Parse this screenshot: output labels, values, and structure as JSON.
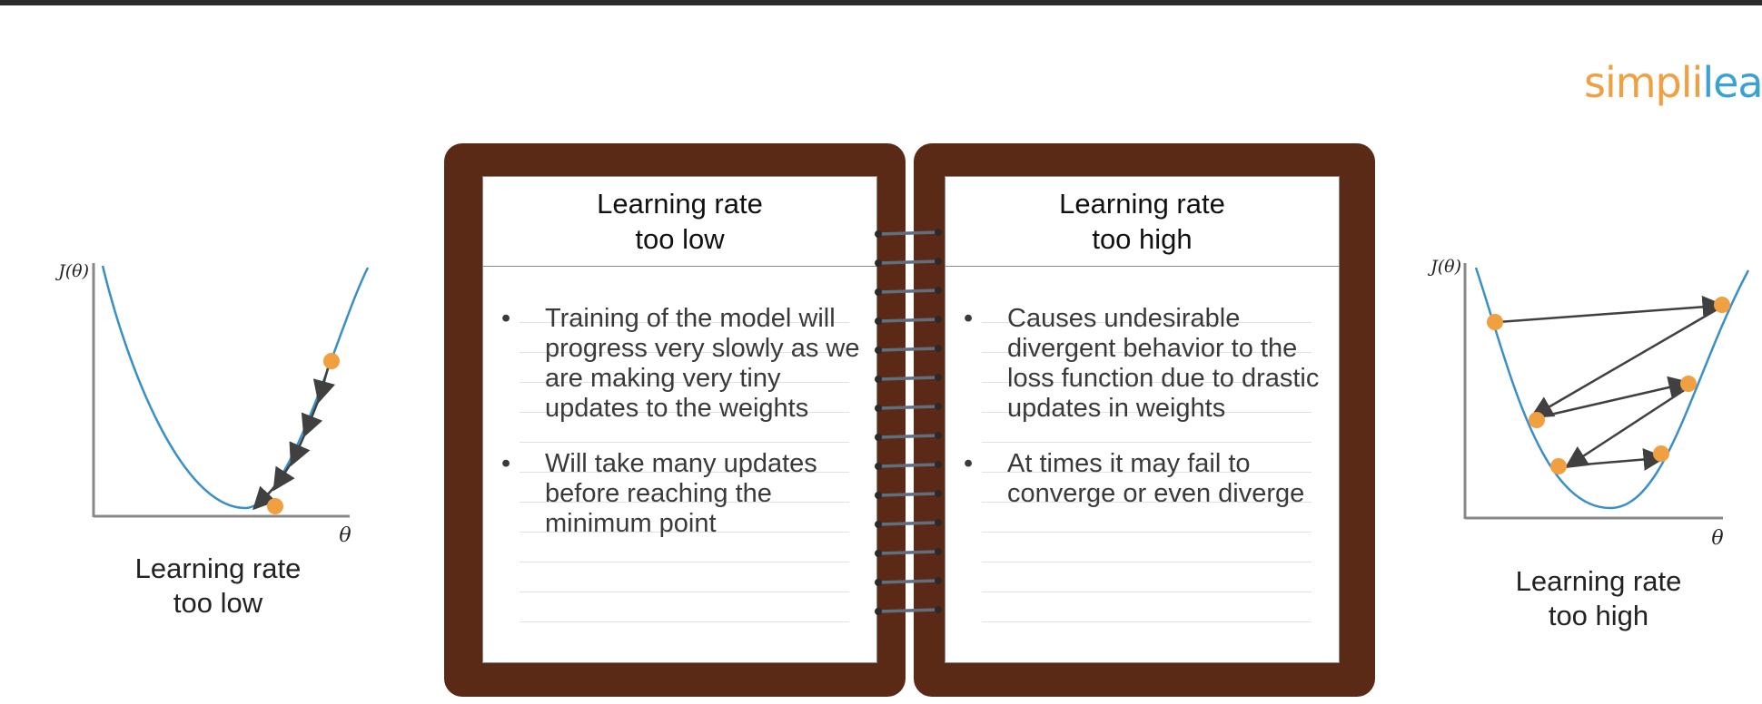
{
  "logo": {
    "part1": "simpl",
    "separator": "i",
    "part2": "learn"
  },
  "colors": {
    "cover": "#5a2a17",
    "curve": "#3a8fc7",
    "dot": "#f0a040",
    "arrow": "#404040",
    "axis": "#888888"
  },
  "left_graph": {
    "y_label": "J(θ)",
    "x_label": "θ",
    "caption_line1": "Learning rate",
    "caption_line2": "too low"
  },
  "right_graph": {
    "y_label": "J(θ)",
    "x_label": "θ",
    "caption_line1": "Learning rate",
    "caption_line2": "too high"
  },
  "notebook": {
    "left_page": {
      "title_line1": "Learning rate",
      "title_line2": "too low",
      "bullets": [
        "Training of the model will progress very slowly as we are making very tiny updates to the weights",
        "Will take many updates before reaching the minimum point"
      ]
    },
    "right_page": {
      "title_line1": "Learning rate",
      "title_line2": "too high",
      "bullets": [
        "Causes undesirable divergent behavior to the loss function due to drastic updates in weights",
        " At times it may fail to converge or even diverge"
      ]
    },
    "bullet_marker": "•"
  }
}
